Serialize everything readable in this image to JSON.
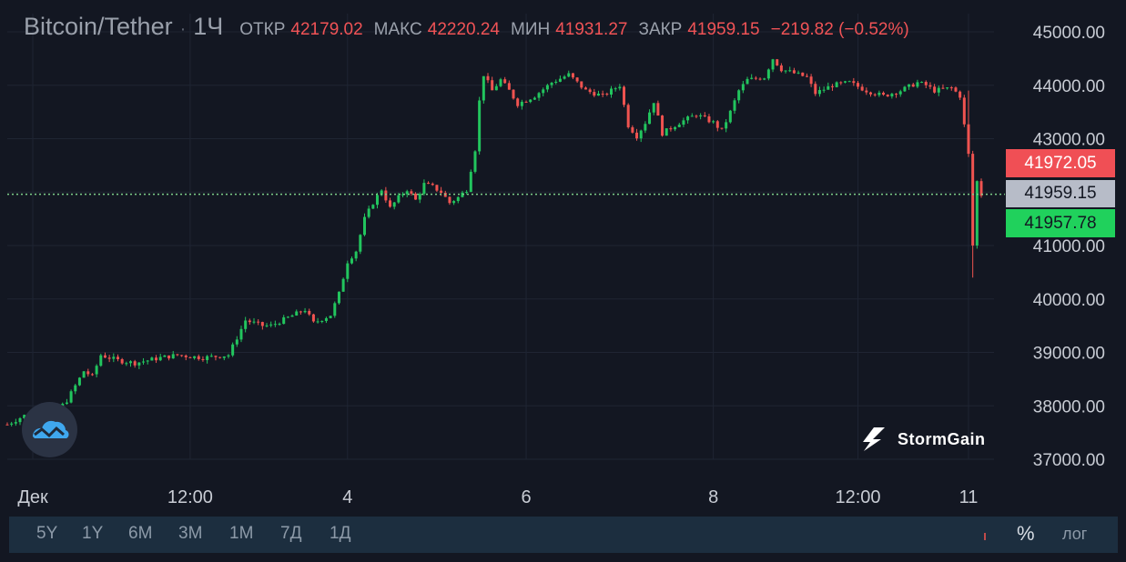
{
  "header": {
    "symbol": "Bitcoin/Tether",
    "separator": "·",
    "timeframe": "1Ч",
    "open_label": "ОТКР",
    "open": "42179.02",
    "high_label": "МАКС",
    "high": "42220.24",
    "low_label": "МИН",
    "low": "41931.27",
    "close_label": "ЗАКР",
    "close": "41959.15",
    "change": "−219.82 (−0.52%)"
  },
  "price_tags": {
    "ask": "41972.05",
    "last": "41959.15",
    "bid": "41957.78"
  },
  "toolbar": {
    "ranges": [
      "5Y",
      "1Y",
      "6M",
      "3M",
      "1M",
      "7Д",
      "1Д"
    ],
    "percent": "%",
    "log": "лог"
  },
  "brand": {
    "name": "StormGain",
    "logo_icon": "stormgain-logo-icon",
    "tv_icon": "tradingview-cloud-icon"
  },
  "colors": {
    "up": "#22c55e",
    "down": "#ef5350",
    "background": "#131722",
    "grid": "#1f2533",
    "ask": "#f04f55",
    "bid": "#20d15c",
    "last": "#b7bcc8"
  },
  "chart_data": {
    "type": "candlestick",
    "ylim": [
      37000,
      45000
    ],
    "yticks": [
      "45000.00",
      "44000.00",
      "43000.00",
      "42000.00",
      "41000.00",
      "40000.00",
      "39000.00",
      "38000.00",
      "37000.00"
    ],
    "xticks": [
      "Дек",
      "12:00",
      "4",
      "6",
      "8",
      "12:00",
      "11"
    ],
    "last_price": 41959.15,
    "path": [
      [
        0,
        37650
      ],
      [
        6,
        37900
      ],
      [
        10,
        37750
      ],
      [
        14,
        38100
      ],
      [
        18,
        38650
      ],
      [
        20,
        38550
      ],
      [
        22,
        38950
      ],
      [
        26,
        38850
      ],
      [
        30,
        38800
      ],
      [
        36,
        38900
      ],
      [
        40,
        38950
      ],
      [
        46,
        38900
      ],
      [
        52,
        38950
      ],
      [
        56,
        39600
      ],
      [
        60,
        39500
      ],
      [
        62,
        39500
      ],
      [
        66,
        39650
      ],
      [
        70,
        39800
      ],
      [
        72,
        39550
      ],
      [
        76,
        39700
      ],
      [
        78,
        40100
      ],
      [
        80,
        40700
      ],
      [
        82,
        40900
      ],
      [
        84,
        41500
      ],
      [
        86,
        41800
      ],
      [
        88,
        42050
      ],
      [
        90,
        41700
      ],
      [
        92,
        41900
      ],
      [
        94,
        42050
      ],
      [
        96,
        41850
      ],
      [
        98,
        42150
      ],
      [
        100,
        42100
      ],
      [
        102,
        42000
      ],
      [
        104,
        41800
      ],
      [
        106,
        41900
      ],
      [
        108,
        42050
      ],
      [
        110,
        42800
      ],
      [
        111,
        43700
      ],
      [
        112,
        44200
      ],
      [
        114,
        43900
      ],
      [
        116,
        44100
      ],
      [
        118,
        43900
      ],
      [
        120,
        43650
      ],
      [
        124,
        43800
      ],
      [
        128,
        44050
      ],
      [
        132,
        44200
      ],
      [
        136,
        43900
      ],
      [
        140,
        43800
      ],
      [
        144,
        44000
      ],
      [
        146,
        43250
      ],
      [
        148,
        43050
      ],
      [
        150,
        43300
      ],
      [
        152,
        43700
      ],
      [
        154,
        43100
      ],
      [
        158,
        43300
      ],
      [
        162,
        43450
      ],
      [
        166,
        43300
      ],
      [
        168,
        43150
      ],
      [
        170,
        43500
      ],
      [
        172,
        43900
      ],
      [
        174,
        44100
      ],
      [
        178,
        44150
      ],
      [
        180,
        44500
      ],
      [
        182,
        44300
      ],
      [
        186,
        44200
      ],
      [
        188,
        44150
      ],
      [
        190,
        43850
      ],
      [
        194,
        44000
      ],
      [
        198,
        44050
      ],
      [
        202,
        43900
      ],
      [
        206,
        43800
      ],
      [
        210,
        43900
      ],
      [
        214,
        44050
      ],
      [
        216,
        44000
      ],
      [
        218,
        43900
      ],
      [
        222,
        43950
      ],
      [
        224,
        43800
      ],
      [
        226,
        42700
      ],
      [
        227,
        41000
      ],
      [
        228,
        42200
      ],
      [
        229,
        41950
      ]
    ],
    "x_domain": [
      0,
      229
    ]
  }
}
